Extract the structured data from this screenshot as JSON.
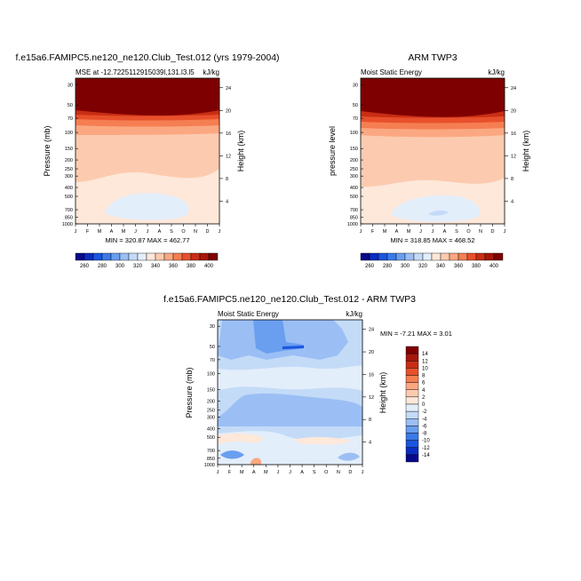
{
  "months": [
    "J",
    "F",
    "M",
    "A",
    "M",
    "J",
    "J",
    "A",
    "S",
    "O",
    "N",
    "D",
    "J"
  ],
  "pressure_ticks": [
    "30",
    "50",
    "70",
    "100",
    "150",
    "200",
    "250",
    "300",
    "400",
    "500",
    "700",
    "850",
    "1000"
  ],
  "height_ticks": [
    "24",
    "20",
    "16",
    "12",
    "8",
    "4"
  ],
  "panels": [
    {
      "title": "f.e15a6.FAMIPC5.ne120_ne120.Club_Test.012 (yrs 1979-2004)",
      "left_label": "MSE at -12.7225112915039l,131.l3.l5",
      "right_label": "kJ/kg",
      "ylabel": "Pressure (mb)",
      "ylabel_right": "Height (km)",
      "stats": "MIN = 320.87 MAX = 462.77"
    },
    {
      "title": "ARM TWP3",
      "left_label": "Moist Static Energy",
      "right_label": "kJ/kg",
      "ylabel": "pressure level",
      "ylabel_right": "Height (km)",
      "stats": "MIN = 318.85 MAX = 468.52"
    },
    {
      "title": "f.e15a6.FAMIPC5.ne120_ne120.Club_Test.012 - ARM TWP3",
      "left_label": "Moist Static Energy",
      "right_label": "kJ/kg",
      "ylabel": "Pressure (mb)",
      "ylabel_right": "Height (km)",
      "stats": "MIN =  -7.21 MAX =   3.01"
    }
  ],
  "colorbar_abs": {
    "labels": [
      "260",
      "280",
      "300",
      "320",
      "340",
      "360",
      "380",
      "400"
    ],
    "colors": [
      "#08088a",
      "#0a2dbf",
      "#1a55e0",
      "#3a7ae8",
      "#6a9eef",
      "#9bbff4",
      "#c4dbf8",
      "#e3eefb",
      "#fde8da",
      "#fccbaf",
      "#fba882",
      "#f57e52",
      "#e8502c",
      "#c82e14",
      "#a6170a",
      "#7f0000"
    ]
  },
  "colorbar_diff": {
    "labels": [
      "14",
      "12",
      "10",
      "8",
      "6",
      "4",
      "2",
      "0",
      "-2",
      "-4",
      "-6",
      "-8",
      "-10",
      "-12",
      "-14"
    ],
    "colors": [
      "#7f0000",
      "#a6170a",
      "#c82e14",
      "#e8502c",
      "#f57e52",
      "#fba882",
      "#fccbaf",
      "#fde8da",
      "#e3eefb",
      "#c4dbf8",
      "#9bbff4",
      "#6a9eef",
      "#3a7ae8",
      "#1a55e0",
      "#0a2dbf",
      "#08088a"
    ]
  },
  "chart_data": [
    {
      "type": "heatmap",
      "title": "f.e15a6.FAMIPC5.ne120_ne120.Club_Test.012 (yrs 1979-2004)",
      "subtitle": "MSE at -12.7225112915039l,131.l3.l5",
      "units": "kJ/kg",
      "x": [
        "J",
        "F",
        "M",
        "A",
        "M",
        "J",
        "J",
        "A",
        "S",
        "O",
        "N",
        "D",
        "J"
      ],
      "y_pressure_mb": [
        30,
        50,
        70,
        100,
        150,
        200,
        250,
        300,
        400,
        500,
        700,
        850,
        1000
      ],
      "y_height_km": [
        24,
        20,
        16,
        12,
        8,
        4
      ],
      "ylabel": "Pressure (mb)",
      "ylabel_right": "Height (km)",
      "min": 320.87,
      "max": 462.77,
      "contour_levels": [
        260,
        270,
        280,
        290,
        300,
        310,
        320,
        330,
        340,
        350,
        360,
        370,
        380,
        390,
        400
      ]
    },
    {
      "type": "heatmap",
      "title": "ARM TWP3",
      "subtitle": "Moist Static Energy",
      "units": "kJ/kg",
      "x": [
        "J",
        "F",
        "M",
        "A",
        "M",
        "J",
        "J",
        "A",
        "S",
        "O",
        "N",
        "D",
        "J"
      ],
      "y_pressure_mb": [
        30,
        50,
        70,
        100,
        150,
        200,
        250,
        300,
        400,
        500,
        700,
        850,
        1000
      ],
      "y_height_km": [
        24,
        20,
        16,
        12,
        8,
        4
      ],
      "ylabel": "pressure level",
      "ylabel_right": "Height (km)",
      "min": 318.85,
      "max": 468.52,
      "contour_levels": [
        260,
        270,
        280,
        290,
        300,
        310,
        320,
        330,
        340,
        350,
        360,
        370,
        380,
        390,
        400
      ]
    },
    {
      "type": "heatmap",
      "title": "f.e15a6.FAMIPC5.ne120_ne120.Club_Test.012 - ARM TWP3",
      "subtitle": "Moist Static Energy",
      "units": "kJ/kg",
      "x": [
        "J",
        "F",
        "M",
        "A",
        "M",
        "J",
        "J",
        "A",
        "S",
        "O",
        "N",
        "D",
        "J"
      ],
      "y_pressure_mb": [
        30,
        50,
        70,
        100,
        150,
        200,
        250,
        300,
        400,
        500,
        700,
        850,
        1000
      ],
      "y_height_km": [
        24,
        20,
        16,
        12,
        8,
        4
      ],
      "ylabel": "Pressure (mb)",
      "ylabel_right": "Height (km)",
      "min": -7.21,
      "max": 3.01,
      "contour_levels": [
        -14,
        -12,
        -10,
        -8,
        -6,
        -4,
        -2,
        0,
        2,
        4,
        6,
        8,
        10,
        12,
        14
      ]
    }
  ]
}
